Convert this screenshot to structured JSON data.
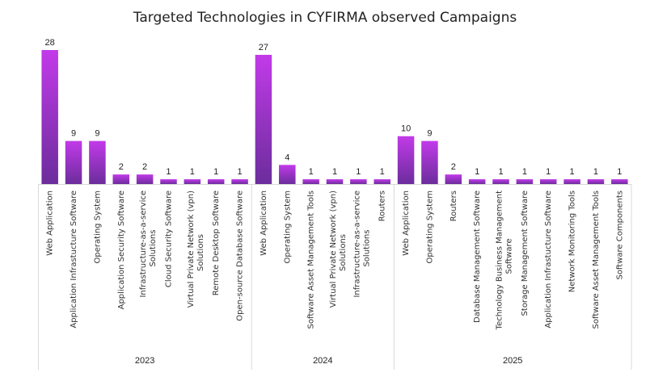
{
  "chart_data": {
    "type": "bar",
    "title": "Targeted Technologies in CYFIRMA observed Campaigns",
    "xlabel": "",
    "ylabel": "",
    "ylim": [
      0,
      28
    ],
    "grid": false,
    "legend": "none",
    "colors": {
      "bar_top": "#c23ae9",
      "bar_bottom": "#6b2d9c",
      "axis": "#d9d9d9"
    },
    "groups": [
      {
        "name": "2023",
        "categories": [
          "Web Application",
          "Application Infrastucture Software",
          "Operating System",
          "Application Security Software",
          "Infrastructure-as-a-service Solutions",
          "Cloud Security Software",
          "Virtual Private Network (vpn) Solutions",
          "Remote Desktop Software",
          "Open-source Database Software"
        ],
        "values": [
          28,
          9,
          9,
          2,
          2,
          1,
          1,
          1,
          1
        ]
      },
      {
        "name": "2024",
        "categories": [
          "Web Application",
          "Operating System",
          "Software Asset Management Tools",
          "Virtual Private Network (vpn) Solutions",
          "Infrastructure-as-a-service Solutions",
          "Routers"
        ],
        "values": [
          27,
          4,
          1,
          1,
          1,
          1
        ]
      },
      {
        "name": "2025",
        "categories": [
          "Web Application",
          "Operating System",
          "Routers",
          "Database Management Software",
          "Technology Business Management Software",
          "Storage Management Software",
          "Application Infrastucture Software",
          "Network Monitoring Tools",
          "Software Asset Management Tools",
          "Software Components"
        ],
        "values": [
          10,
          9,
          2,
          1,
          1,
          1,
          1,
          1,
          1,
          1
        ]
      }
    ]
  }
}
